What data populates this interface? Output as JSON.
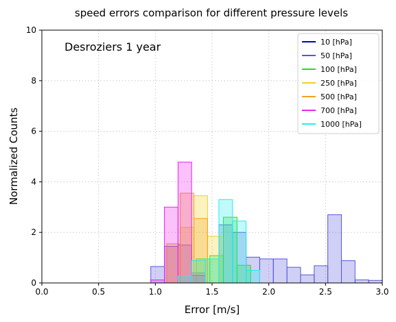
{
  "chart_data": {
    "type": "histogram",
    "title": "speed errors comparison for different pressure levels",
    "annotation": "Desroziers 1 year",
    "xlabel": "Error [m/s]",
    "ylabel": "Normalized Counts",
    "xlim": [
      0.0,
      3.0
    ],
    "ylim": [
      0,
      10
    ],
    "xticks": [
      "0.0",
      "0.5",
      "1.0",
      "1.5",
      "2.0",
      "2.5",
      "3.0"
    ],
    "yticks": [
      "0",
      "2",
      "4",
      "6",
      "8",
      "10"
    ],
    "grid": true,
    "grid_style": "dotted",
    "legend_position": "upper-right",
    "series": [
      {
        "name": "10 [hPa]",
        "color": "#0000cc",
        "bins": []
      },
      {
        "name": "50 [hPa]",
        "color": "#5555dd",
        "bins": [
          {
            "x0": 0.96,
            "x1": 1.08,
            "y": 0.65
          },
          {
            "x0": 1.08,
            "x1": 1.2,
            "y": 1.45
          },
          {
            "x0": 1.2,
            "x1": 1.32,
            "y": 1.5
          },
          {
            "x0": 1.32,
            "x1": 1.44,
            "y": 0.4
          },
          {
            "x0": 1.44,
            "x1": 1.56,
            "y": 0.0
          },
          {
            "x0": 1.56,
            "x1": 1.68,
            "y": 2.3
          },
          {
            "x0": 1.68,
            "x1": 1.8,
            "y": 2.0
          },
          {
            "x0": 1.8,
            "x1": 1.92,
            "y": 1.02
          },
          {
            "x0": 1.92,
            "x1": 2.04,
            "y": 0.95
          },
          {
            "x0": 2.04,
            "x1": 2.16,
            "y": 0.95
          },
          {
            "x0": 2.16,
            "x1": 2.28,
            "y": 0.62
          },
          {
            "x0": 2.28,
            "x1": 2.4,
            "y": 0.32
          },
          {
            "x0": 2.4,
            "x1": 2.52,
            "y": 0.68
          },
          {
            "x0": 2.52,
            "x1": 2.64,
            "y": 2.7
          },
          {
            "x0": 2.64,
            "x1": 2.76,
            "y": 0.88
          },
          {
            "x0": 2.76,
            "x1": 2.88,
            "y": 0.12
          },
          {
            "x0": 2.88,
            "x1": 3.0,
            "y": 0.1
          }
        ]
      },
      {
        "name": "100 [hPa]",
        "color": "#22dd22",
        "bins": [
          {
            "x0": 1.36,
            "x1": 1.48,
            "y": 0.95
          },
          {
            "x0": 1.48,
            "x1": 1.6,
            "y": 1.08
          },
          {
            "x0": 1.6,
            "x1": 1.72,
            "y": 2.6
          },
          {
            "x0": 1.72,
            "x1": 1.84,
            "y": 0.7
          }
        ]
      },
      {
        "name": "250 [hPa]",
        "color": "#f0d020",
        "bins": [
          {
            "x0": 1.1,
            "x1": 1.22,
            "y": 1.4
          },
          {
            "x0": 1.22,
            "x1": 1.34,
            "y": 2.2
          },
          {
            "x0": 1.34,
            "x1": 1.46,
            "y": 3.45
          },
          {
            "x0": 1.46,
            "x1": 1.58,
            "y": 1.85
          }
        ]
      },
      {
        "name": "500 [hPa]",
        "color": "#f5a020",
        "bins": [
          {
            "x0": 1.1,
            "x1": 1.22,
            "y": 1.55
          },
          {
            "x0": 1.22,
            "x1": 1.34,
            "y": 3.55
          },
          {
            "x0": 1.34,
            "x1": 1.46,
            "y": 2.55
          }
        ]
      },
      {
        "name": "700 [hPa]",
        "color": "#ee22ee",
        "bins": [
          {
            "x0": 0.96,
            "x1": 1.08,
            "y": 0.12
          },
          {
            "x0": 1.08,
            "x1": 1.2,
            "y": 3.0
          },
          {
            "x0": 1.2,
            "x1": 1.32,
            "y": 4.78
          },
          {
            "x0": 1.32,
            "x1": 1.44,
            "y": 0.3
          }
        ]
      },
      {
        "name": "1000 [hPa]",
        "color": "#22eeee",
        "bins": [
          {
            "x0": 1.2,
            "x1": 1.32,
            "y": 0.28
          },
          {
            "x0": 1.32,
            "x1": 1.44,
            "y": 0.88
          },
          {
            "x0": 1.44,
            "x1": 1.56,
            "y": 0.95
          },
          {
            "x0": 1.56,
            "x1": 1.68,
            "y": 3.3
          },
          {
            "x0": 1.68,
            "x1": 1.8,
            "y": 2.45
          },
          {
            "x0": 1.8,
            "x1": 1.92,
            "y": 0.5
          }
        ]
      }
    ]
  }
}
